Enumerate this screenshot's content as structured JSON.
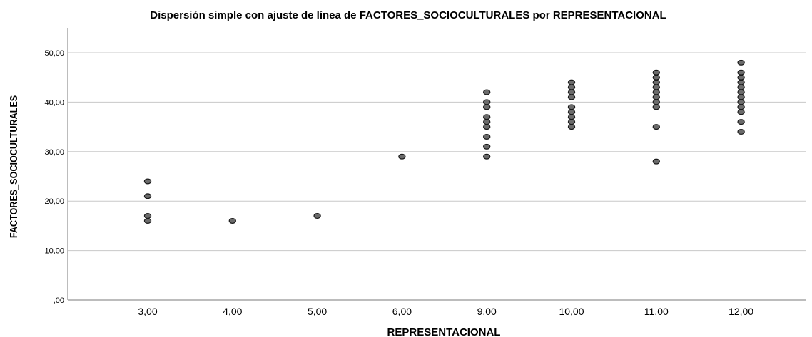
{
  "chart_data": {
    "type": "scatter",
    "title": "Dispersión simple con ajuste de línea de FACTORES_SOCIOCULTURALES por REPRESENTACIONAL",
    "xlabel": "REPRESENTACIONAL",
    "ylabel": "FACTORES_SOCIOCULTURALES",
    "x_categories": [
      "3,00",
      "4,00",
      "5,00",
      "6,00",
      "9,00",
      "10,00",
      "11,00",
      "12,00"
    ],
    "y_ticks": [
      {
        "value": 0,
        "label": ",00"
      },
      {
        "value": 10,
        "label": "10,00"
      },
      {
        "value": 20,
        "label": "20,00"
      },
      {
        "value": 30,
        "label": "30,00"
      },
      {
        "value": 40,
        "label": "40,00"
      },
      {
        "value": 50,
        "label": "50,00"
      }
    ],
    "ylim": [
      0,
      50
    ],
    "grid": "horizontal",
    "points": [
      {
        "x": "3,00",
        "y": 24
      },
      {
        "x": "3,00",
        "y": 21
      },
      {
        "x": "3,00",
        "y": 17
      },
      {
        "x": "3,00",
        "y": 16
      },
      {
        "x": "4,00",
        "y": 16
      },
      {
        "x": "5,00",
        "y": 17
      },
      {
        "x": "6,00",
        "y": 29
      },
      {
        "x": "9,00",
        "y": 42
      },
      {
        "x": "9,00",
        "y": 40
      },
      {
        "x": "9,00",
        "y": 39
      },
      {
        "x": "9,00",
        "y": 37
      },
      {
        "x": "9,00",
        "y": 36
      },
      {
        "x": "9,00",
        "y": 35
      },
      {
        "x": "9,00",
        "y": 33
      },
      {
        "x": "9,00",
        "y": 31
      },
      {
        "x": "9,00",
        "y": 29
      },
      {
        "x": "10,00",
        "y": 44
      },
      {
        "x": "10,00",
        "y": 43
      },
      {
        "x": "10,00",
        "y": 42
      },
      {
        "x": "10,00",
        "y": 41
      },
      {
        "x": "10,00",
        "y": 39
      },
      {
        "x": "10,00",
        "y": 38
      },
      {
        "x": "10,00",
        "y": 37
      },
      {
        "x": "10,00",
        "y": 36
      },
      {
        "x": "10,00",
        "y": 35
      },
      {
        "x": "11,00",
        "y": 46
      },
      {
        "x": "11,00",
        "y": 45
      },
      {
        "x": "11,00",
        "y": 44
      },
      {
        "x": "11,00",
        "y": 43
      },
      {
        "x": "11,00",
        "y": 42
      },
      {
        "x": "11,00",
        "y": 41
      },
      {
        "x": "11,00",
        "y": 40
      },
      {
        "x": "11,00",
        "y": 39
      },
      {
        "x": "11,00",
        "y": 35
      },
      {
        "x": "11,00",
        "y": 28
      },
      {
        "x": "12,00",
        "y": 48
      },
      {
        "x": "12,00",
        "y": 46
      },
      {
        "x": "12,00",
        "y": 45
      },
      {
        "x": "12,00",
        "y": 44
      },
      {
        "x": "12,00",
        "y": 43
      },
      {
        "x": "12,00",
        "y": 42
      },
      {
        "x": "12,00",
        "y": 41
      },
      {
        "x": "12,00",
        "y": 40
      },
      {
        "x": "12,00",
        "y": 39
      },
      {
        "x": "12,00",
        "y": 38
      },
      {
        "x": "12,00",
        "y": 36
      },
      {
        "x": "12,00",
        "y": 34
      }
    ],
    "colors": {
      "marker_fill": "#6b6b6b",
      "marker_stroke": "#1a1a1a",
      "gridline": "#c8c8c8",
      "axis": "#7a7a7a",
      "text": "#000000",
      "background": "#ffffff"
    }
  }
}
